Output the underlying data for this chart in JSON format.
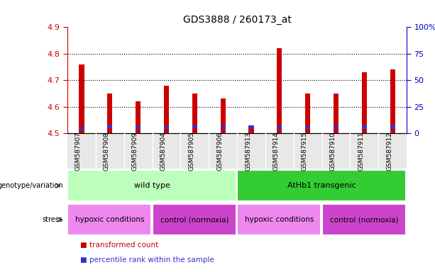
{
  "title": "GDS3888 / 260173_at",
  "samples": [
    "GSM587907",
    "GSM587908",
    "GSM587909",
    "GSM587904",
    "GSM587905",
    "GSM587906",
    "GSM587913",
    "GSM587914",
    "GSM587915",
    "GSM587910",
    "GSM587911",
    "GSM587912"
  ],
  "transformed_count": [
    4.76,
    4.65,
    4.62,
    4.68,
    4.65,
    4.63,
    4.52,
    4.82,
    4.65,
    4.65,
    4.73,
    4.74
  ],
  "percentile_bottom": [
    4.513,
    4.518,
    4.516,
    4.516,
    4.518,
    4.516,
    4.516,
    4.516,
    4.516,
    4.516,
    4.516,
    4.516
  ],
  "percentile_top": [
    4.524,
    4.53,
    4.527,
    4.527,
    4.53,
    4.527,
    4.53,
    4.527,
    4.527,
    4.527,
    4.53,
    4.53
  ],
  "bar_bottom": 4.5,
  "ylim": [
    4.5,
    4.9
  ],
  "yticks": [
    4.5,
    4.6,
    4.7,
    4.8,
    4.9
  ],
  "right_ytick_vals": [
    4.5,
    4.6,
    4.7,
    4.8,
    4.9
  ],
  "right_ytick_labels": [
    "0",
    "25",
    "50",
    "75",
    "100%"
  ],
  "bar_color": "#cc0000",
  "percentile_color": "#3333cc",
  "bar_width": 0.18,
  "genotype_groups": [
    {
      "label": "wild type",
      "start": 0,
      "end": 6,
      "color": "#bbffbb"
    },
    {
      "label": "AtHb1 transgenic",
      "start": 6,
      "end": 12,
      "color": "#33cc33"
    }
  ],
  "stress_groups": [
    {
      "label": "hypoxic conditions",
      "start": 0,
      "end": 3,
      "color": "#ee88ee"
    },
    {
      "label": "control (normoxia)",
      "start": 3,
      "end": 6,
      "color": "#cc44cc"
    },
    {
      "label": "hypoxic conditions",
      "start": 6,
      "end": 9,
      "color": "#ee88ee"
    },
    {
      "label": "control (normoxia)",
      "start": 9,
      "end": 12,
      "color": "#cc44cc"
    }
  ],
  "legend_items": [
    {
      "label": "transformed count",
      "color": "#cc0000"
    },
    {
      "label": "percentile rank within the sample",
      "color": "#3333cc"
    }
  ],
  "left_ylabel_color": "#cc0000",
  "right_ylabel_color": "#0000cc",
  "bg_color": "#ffffff",
  "title_fontsize": 10,
  "sample_label_fontsize": 6.5,
  "annotation_fontsize": 8
}
